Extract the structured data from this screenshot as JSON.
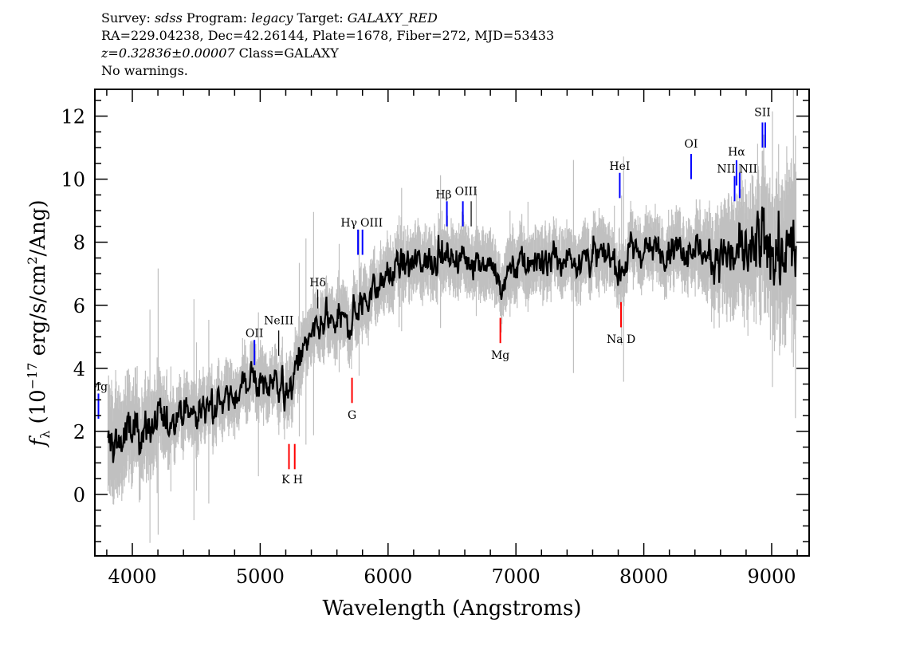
{
  "header": {
    "line1": {
      "survey_label": "Survey:",
      "survey": "sdss",
      "program_label": "Program:",
      "program": "legacy",
      "target_label": "Target:",
      "target": "GALAXY_RED"
    },
    "line2": "RA=229.04238, Dec=42.26144, Plate=1678, Fiber=272, MJD=53433",
    "line3": {
      "redshift": "z=0.32836±0.00007",
      "class": "Class=GALAXY"
    },
    "line4": "No warnings."
  },
  "chart_data": {
    "type": "line",
    "title": "",
    "xlabel": "Wavelength (Angstroms)",
    "ylabel": "f_λ (10^-17 erg/s/cm^2/Ang)",
    "xlim": [
      3707,
      9293
    ],
    "ylim": [
      -1.95,
      12.85
    ],
    "xticks": [
      4000,
      5000,
      6000,
      7000,
      8000,
      9000
    ],
    "yticks": [
      0,
      2,
      4,
      6,
      8,
      10,
      12
    ],
    "grid": false,
    "colors": {
      "flux": "#000000",
      "error": "#c0c0c0",
      "emission": "#0000ff",
      "absorption": "#ff0000",
      "other": "#000000"
    },
    "continuum": [
      [
        3810,
        1.4
      ],
      [
        3900,
        1.7
      ],
      [
        4000,
        1.9
      ],
      [
        4200,
        2.2
      ],
      [
        4400,
        2.5
      ],
      [
        4600,
        2.8
      ],
      [
        4800,
        3.1
      ],
      [
        4950,
        3.7
      ],
      [
        5050,
        3.4
      ],
      [
        5150,
        3.6
      ],
      [
        5220,
        2.9
      ],
      [
        5300,
        4.4
      ],
      [
        5400,
        4.9
      ],
      [
        5500,
        5.3
      ],
      [
        5600,
        5.5
      ],
      [
        5700,
        5.5
      ],
      [
        5800,
        6.1
      ],
      [
        5900,
        6.5
      ],
      [
        6000,
        7.0
      ],
      [
        6200,
        7.3
      ],
      [
        6400,
        7.6
      ],
      [
        6600,
        7.5
      ],
      [
        6800,
        7.4
      ],
      [
        6880,
        6.3
      ],
      [
        6950,
        7.2
      ],
      [
        7200,
        7.4
      ],
      [
        7500,
        7.5
      ],
      [
        7700,
        7.6
      ],
      [
        7820,
        6.9
      ],
      [
        7900,
        7.7
      ],
      [
        8200,
        7.8
      ],
      [
        8500,
        7.7
      ],
      [
        8800,
        7.6
      ],
      [
        9000,
        7.7
      ],
      [
        9190,
        7.4
      ]
    ],
    "lines": [
      {
        "label": "Mg",
        "wave": 3735,
        "color": "#0000ff",
        "y": [
          2.4,
          3.2
        ],
        "label_y": 3.3
      },
      {
        "label": "OII",
        "wave": 4955,
        "color": "#0000ff",
        "y": [
          4.1,
          4.9
        ],
        "label_y": 5.0
      },
      {
        "label": "NeIII",
        "wave": 5145,
        "color": "#000000",
        "y": [
          4.4,
          5.2
        ],
        "label_y": 5.4
      },
      {
        "label": "K",
        "wave": 5225,
        "color": "#ff0000",
        "y": [
          0.8,
          1.6
        ],
        "label_y": 0.35
      },
      {
        "label": "H",
        "wave": 5270,
        "color": "#ff0000",
        "y": [
          0.8,
          1.6
        ],
        "label_y": 0.35
      },
      {
        "label": "Hδ",
        "wave": 5450,
        "color": "#000000",
        "y": [
          5.9,
          6.5
        ],
        "label_y": 6.6
      },
      {
        "label": "G",
        "wave": 5718,
        "color": "#ff0000",
        "y": [
          2.9,
          3.7
        ],
        "label_y": 2.4
      },
      {
        "label": "Hγ",
        "wave": 5765,
        "color": "#0000ff",
        "y": [
          7.6,
          8.4
        ],
        "label_y": 8.5
      },
      {
        "label": "OIII",
        "wave": 5800,
        "color": "#0000ff",
        "y": [
          7.6,
          8.4
        ],
        "label_y": 8.5
      },
      {
        "label": "Hβ",
        "wave": 6460,
        "color": "#0000ff",
        "y": [
          8.5,
          9.3
        ],
        "label_y": 9.4
      },
      {
        "label": "OIII",
        "wave": 6585,
        "color": "#0000ff",
        "y": [
          8.5,
          9.3
        ],
        "label_y": 9.5
      },
      {
        "label": "",
        "wave": 6650,
        "color": "#000000",
        "y": [
          8.5,
          9.3
        ],
        "label_y": 9.5
      },
      {
        "label": "Mg",
        "wave": 6878,
        "color": "#ff0000",
        "y": [
          4.8,
          5.6
        ],
        "label_y": 4.3
      },
      {
        "label": "HeI",
        "wave": 7812,
        "color": "#0000ff",
        "y": [
          9.4,
          10.2
        ],
        "label_y": 10.3
      },
      {
        "label": "Na D",
        "wave": 7822,
        "color": "#ff0000",
        "y": [
          5.3,
          6.1
        ],
        "label_y": 4.8
      },
      {
        "label": "OI",
        "wave": 8370,
        "color": "#0000ff",
        "y": [
          10.0,
          10.8
        ],
        "label_y": 11.0
      },
      {
        "label": "NII",
        "wave": 8710,
        "color": "#0000ff",
        "y": [
          9.3,
          10.1
        ],
        "label_y": 10.2
      },
      {
        "label": "Hα",
        "wave": 8725,
        "color": "#0000ff",
        "y": [
          9.8,
          10.6
        ],
        "label_y": 10.75
      },
      {
        "label": "NII",
        "wave": 8750,
        "color": "#0000ff",
        "y": [
          9.4,
          10.2
        ],
        "label_y": 10.2
      },
      {
        "label": "SII",
        "wave": 8928,
        "color": "#0000ff",
        "y": [
          11.0,
          11.8
        ],
        "label_y": 12.0
      },
      {
        "label": "",
        "wave": 8950,
        "color": "#0000ff",
        "y": [
          11.0,
          11.8
        ],
        "label_y": 12.0
      }
    ]
  }
}
